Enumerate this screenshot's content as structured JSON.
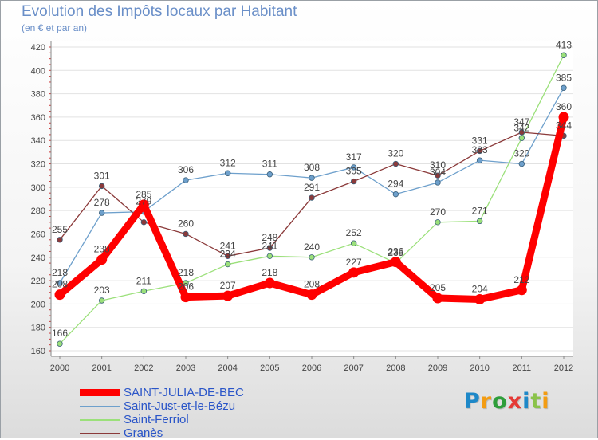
{
  "title": "Evolution des Impôts locaux par Habitant",
  "subtitle": "(en € et par an)",
  "logo": {
    "letters": [
      {
        "ch": "P",
        "color": "#1e88c8"
      },
      {
        "ch": "r",
        "color": "#f39c12"
      },
      {
        "ch": "o",
        "color": "#2e9e3a"
      },
      {
        "ch": "x",
        "color": "#e53935"
      },
      {
        "ch": "i",
        "color": "#1e88c8"
      },
      {
        "ch": "t",
        "color": "#8bc34a"
      },
      {
        "ch": "i",
        "color": "#f39c12"
      }
    ]
  },
  "chart_data": {
    "type": "line",
    "title": "Evolution des Impôts locaux par Habitant",
    "subtitle": "(en € et par an)",
    "x": [
      "2000",
      "2001",
      "2002",
      "2003",
      "2004",
      "2005",
      "2006",
      "2007",
      "2008",
      "2009",
      "2010",
      "2011",
      "2012"
    ],
    "ylim": [
      160,
      420
    ],
    "yticks": [
      160,
      180,
      200,
      220,
      240,
      260,
      280,
      300,
      320,
      340,
      360,
      380,
      400,
      420
    ],
    "grid": true,
    "legend_position": "bottom-left",
    "series": [
      {
        "name": "SAINT-JULIA-DE-BEC",
        "color": "#ff0000",
        "legend_color": "#2a55c8",
        "values": [
          208,
          238,
          285,
          206,
          207,
          218,
          208,
          227,
          236,
          205,
          204,
          212,
          360
        ],
        "labels": [
          "208",
          "238",
          "285",
          "206",
          "207",
          "218",
          "208",
          "227",
          "236",
          "205",
          "204",
          "212",
          "360"
        ]
      },
      {
        "name": "Saint-Just-et-le-Bézu",
        "color": "#6ea0cc",
        "legend_color": "#2a55c8",
        "values": [
          218,
          278,
          279,
          306,
          312,
          311,
          308,
          317,
          294,
          304,
          323,
          320,
          385
        ],
        "labels": [
          "218",
          "278",
          "279",
          "306",
          "312",
          "311",
          "308",
          "317",
          "294",
          "304",
          "323",
          "320",
          "385"
        ]
      },
      {
        "name": "Saint-Ferriol",
        "color": "#9be07a",
        "legend_color": "#2a55c8",
        "values": [
          166,
          203,
          211,
          218,
          234,
          241,
          240,
          252,
          235,
          270,
          271,
          342,
          413
        ],
        "labels": [
          "166",
          "203",
          "211",
          "218",
          "234",
          "241",
          "240",
          "252",
          "235",
          "270",
          "271",
          "342",
          "413"
        ]
      },
      {
        "name": "Granès",
        "color": "#8b3a3a",
        "legend_color": "#2a55c8",
        "values": [
          255,
          301,
          270,
          260,
          241,
          248,
          291,
          305,
          320,
          310,
          331,
          347,
          344
        ],
        "labels": [
          "255",
          "301",
          "",
          "260",
          "241",
          "248",
          "291",
          "305",
          "320",
          "310",
          "331",
          "347",
          "344"
        ]
      }
    ]
  }
}
